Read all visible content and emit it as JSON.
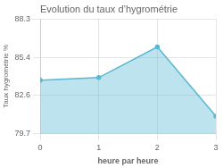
{
  "chart_data": {
    "type": "area",
    "title": "Evolution du taux d’hygrométrie",
    "xlabel": "heure par heure",
    "ylabel": "Taux hygrométrie %",
    "x": [
      0,
      1,
      2,
      3
    ],
    "values": [
      83.7,
      83.9,
      86.2,
      81.0
    ],
    "color": "#5bb8d4",
    "xlim": [
      0,
      3
    ],
    "ylim": [
      79.7,
      88.3
    ],
    "xticks": [
      0,
      1,
      2,
      3
    ],
    "yticks": [
      79.7,
      82.6,
      85.4,
      88.3
    ],
    "grid": true
  }
}
